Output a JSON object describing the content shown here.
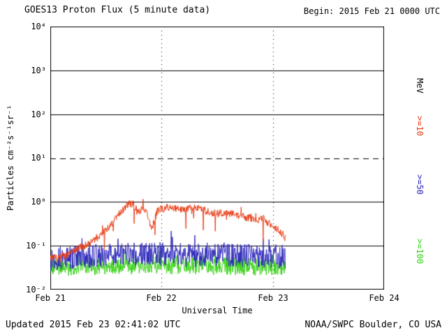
{
  "header": {
    "title": "GOES13 Proton Flux (5 minute data)",
    "begin_label": "Begin: 2015 Feb 21 0000 UTC"
  },
  "footer": {
    "updated": "Updated 2015 Feb 23 02:41:02 UTC",
    "source": "NOAA/SWPC Boulder, CO USA"
  },
  "axes": {
    "y_label": "Particles cm⁻²s⁻¹sr⁻¹",
    "x_label": "Universal Time",
    "y_ticks": [
      "10⁴",
      "10³",
      "10²",
      "10¹",
      "10⁰",
      "10⁻¹",
      "10⁻²"
    ],
    "x_ticks": [
      "Feb 21",
      "Feb 22",
      "Feb 23",
      "Feb 24"
    ]
  },
  "right_labels": {
    "unit": "MeV",
    "ge10": ">=10",
    "ge50": ">=50",
    "ge100": ">=100"
  },
  "chart_data": {
    "type": "line",
    "title": "GOES13 Proton Flux (5 minute data)",
    "xlabel": "Universal Time",
    "ylabel": "Particles cm^-2 s^-1 sr^-1",
    "y_scale": "log10",
    "ylog_range": [
      -2,
      4
    ],
    "x_range_hours": [
      0,
      72
    ],
    "x_tick_hours": [
      0,
      24,
      48,
      72
    ],
    "x_tick_labels": [
      "Feb 21",
      "Feb 22",
      "Feb 23",
      "Feb 24"
    ],
    "begin_utc": "2015 Feb 21 0000 UTC",
    "end_hour": 50.68,
    "cadence_minutes": 5,
    "legend_position": "right",
    "grid": {
      "color": "#000000",
      "h_solid": [
        1000,
        100,
        1,
        0.1
      ],
      "h_dashed": [
        10
      ],
      "v_dotted_hours": [
        24,
        48
      ]
    },
    "series": [
      {
        "name": ">=10 MeV",
        "color": "#e83c16",
        "seed": 7,
        "noise_db": 0.09,
        "spike_prob": 0.04,
        "spike_db": 0.15,
        "dip_prob": 0.03,
        "dip_db": 0.5,
        "anchors": [
          [
            0,
            0.055
          ],
          [
            2,
            0.05
          ],
          [
            4,
            0.065
          ],
          [
            6,
            0.085
          ],
          [
            8,
            0.11
          ],
          [
            10,
            0.15
          ],
          [
            12,
            0.22
          ],
          [
            14,
            0.4
          ],
          [
            16,
            0.75
          ],
          [
            17,
            0.95
          ],
          [
            18,
            0.85
          ],
          [
            19,
            0.55
          ],
          [
            20,
            0.85
          ],
          [
            21,
            0.45
          ],
          [
            22,
            0.25
          ],
          [
            23,
            0.6
          ],
          [
            24,
            0.7
          ],
          [
            26,
            0.75
          ],
          [
            28,
            0.65
          ],
          [
            30,
            0.7
          ],
          [
            32,
            0.75
          ],
          [
            34,
            0.6
          ],
          [
            36,
            0.55
          ],
          [
            38,
            0.6
          ],
          [
            40,
            0.5
          ],
          [
            42,
            0.45
          ],
          [
            44,
            0.42
          ],
          [
            46,
            0.38
          ],
          [
            48,
            0.3
          ],
          [
            49.5,
            0.22
          ],
          [
            50.68,
            0.16
          ]
        ]
      },
      {
        "name": ">=50 MeV",
        "color": "#2c26ba",
        "seed": 13,
        "noise_db": 0.27,
        "spike_prob": 0.07,
        "spike_db": 0.35,
        "dip_prob": 0,
        "dip_db": 0,
        "anchors": [
          [
            0,
            0.05
          ],
          [
            6,
            0.055
          ],
          [
            12,
            0.06
          ],
          [
            18,
            0.065
          ],
          [
            24,
            0.065
          ],
          [
            30,
            0.06
          ],
          [
            36,
            0.065
          ],
          [
            42,
            0.06
          ],
          [
            48,
            0.058
          ],
          [
            50.68,
            0.055
          ]
        ]
      },
      {
        "name": ">=100 MeV",
        "color": "#35d013",
        "seed": 21,
        "noise_db": 0.2,
        "spike_prob": 0.07,
        "spike_db": 0.3,
        "dip_prob": 0,
        "dip_db": 0,
        "anchors": [
          [
            0,
            0.033
          ],
          [
            12,
            0.034
          ],
          [
            24,
            0.036
          ],
          [
            36,
            0.034
          ],
          [
            48,
            0.033
          ],
          [
            50.68,
            0.032
          ]
        ]
      }
    ]
  }
}
